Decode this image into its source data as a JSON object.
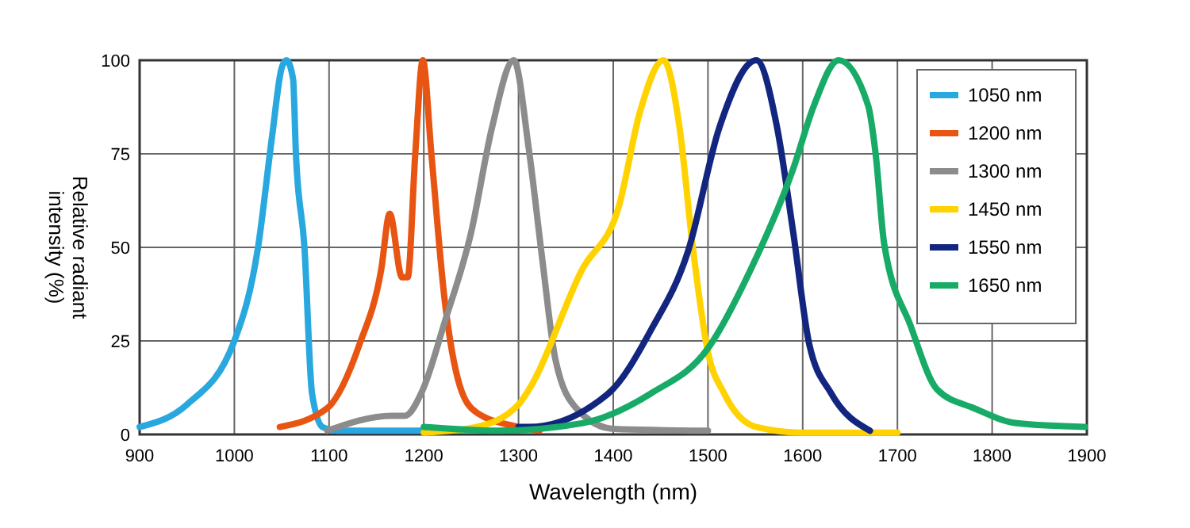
{
  "chart_data": {
    "type": "line",
    "xlabel": "Wavelength (nm)",
    "ylabel": "Relative radiant intensity (%)",
    "xlim": [
      900,
      1900
    ],
    "ylim": [
      0,
      100
    ],
    "xticks": [
      900,
      1000,
      1100,
      1200,
      1300,
      1400,
      1500,
      1600,
      1700,
      1800,
      1900
    ],
    "yticks": [
      0,
      25,
      50,
      75,
      100
    ],
    "grid": true,
    "legend": "top right",
    "line_style": "solid",
    "series": [
      {
        "name": "1050 nm",
        "color": "#29a8e0",
        "x": [
          900,
          950,
          1000,
          1025,
          1040,
          1050,
          1055,
          1062,
          1065,
          1074,
          1082,
          1093,
          1110,
          1200
        ],
        "values": [
          2,
          8,
          25,
          50,
          80,
          98,
          100,
          95,
          75,
          50,
          11,
          2,
          1,
          1
        ]
      },
      {
        "name": "1200 nm",
        "color": "#e85512",
        "x": [
          1048,
          1098,
          1132,
          1155,
          1164,
          1177,
          1183,
          1191,
          1199,
          1208,
          1222,
          1238,
          1255,
          1300,
          1322
        ],
        "values": [
          2,
          7,
          24,
          44,
          59,
          42,
          42,
          75,
          100,
          75,
          36,
          13,
          6,
          2,
          1
        ]
      },
      {
        "name": "1300 nm",
        "color": "#8c8c8c",
        "x": [
          1098,
          1166,
          1180,
          1199,
          1222,
          1250,
          1272,
          1295,
          1311,
          1325,
          1339,
          1361,
          1400,
          1500
        ],
        "values": [
          1,
          5,
          5,
          12,
          30,
          54,
          82,
          100,
          76,
          47,
          20,
          7,
          1.5,
          1
        ]
      },
      {
        "name": "1450 nm",
        "color": "#ffd200",
        "x": [
          1200,
          1255,
          1300,
          1311,
          1367,
          1406,
          1428,
          1453,
          1470,
          1484,
          1500,
          1517,
          1551,
          1600,
          1700
        ],
        "values": [
          0.5,
          2,
          8,
          12,
          44,
          61,
          86,
          100,
          82,
          50,
          22,
          11,
          2,
          0.5,
          0.5
        ]
      },
      {
        "name": "1550 nm",
        "color": "#13267f",
        "x": [
          1300,
          1311,
          1395,
          1440,
          1479,
          1512,
          1551,
          1573,
          1590,
          1607,
          1630,
          1671
        ],
        "values": [
          2,
          2,
          11,
          28,
          49,
          82,
          100,
          82,
          54,
          24,
          11,
          1
        ]
      },
      {
        "name": "1650 nm",
        "color": "#17ab67",
        "x": [
          1200,
          1278,
          1367,
          1440,
          1500,
          1545,
          1590,
          1612,
          1638,
          1669,
          1677,
          1686,
          1714,
          1742,
          1781,
          1826,
          1898
        ],
        "values": [
          2,
          1,
          3,
          11,
          23,
          44,
          71,
          88,
          100,
          88,
          75,
          51,
          29,
          12,
          7,
          3,
          2
        ]
      }
    ]
  }
}
